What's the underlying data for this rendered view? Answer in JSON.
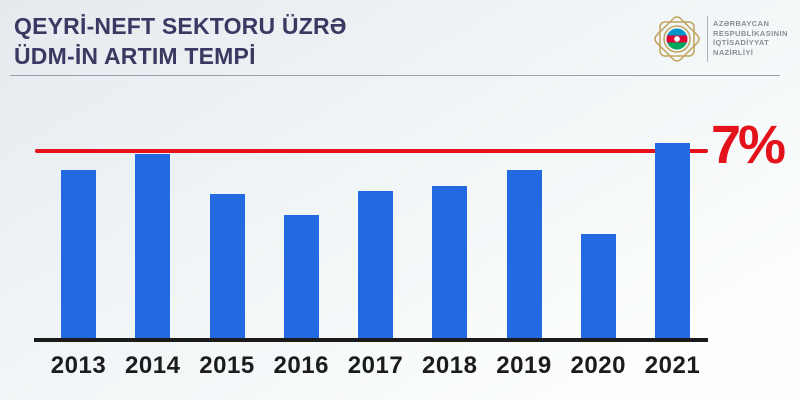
{
  "header": {
    "title_line1": "QEYRİ-NEFT SEKTORU ÜZRƏ",
    "title_line2": "ÜDM-İN ARTIM TEMPİ",
    "logo": {
      "emblem": "azerbaijan-ministry-emblem",
      "org_lines": [
        "AZƏRBAYCAN",
        "RESPUBLİKASININ",
        "İQTİSADİYYAT",
        "NAZİRLİYİ"
      ]
    }
  },
  "colors": {
    "background_top": "#E4EAEE",
    "background_bottom": "#FEFEFE",
    "title": "#3C3862",
    "bar": "#2269E2",
    "target": "#E3121B",
    "axis": "#1B1B1B",
    "logo_gold": "#C2A35E",
    "flag_blue": "#0095C8",
    "flag_red": "#E00034",
    "flag_green": "#00A95C"
  },
  "chart_data": {
    "type": "bar",
    "title": "QEYRİ-NEFT SEKTORU ÜZRƏ ÜDM-İN ARTIM TEMPİ",
    "categories": [
      "2013",
      "2014",
      "2015",
      "2016",
      "2017",
      "2018",
      "2019",
      "2020",
      "2021"
    ],
    "values": [
      6.3,
      6.9,
      5.4,
      4.6,
      5.5,
      5.7,
      6.3,
      3.9,
      7.3
    ],
    "values_estimated_from_pixels": true,
    "unit": "%",
    "xlabel": "",
    "ylabel": "",
    "ylim": [
      0,
      7.5
    ],
    "grid": false,
    "value_labels_shown": false,
    "bar_color": "#2269E2",
    "reference_line": {
      "value": 7,
      "label": "7%",
      "color": "#E3121B"
    }
  }
}
